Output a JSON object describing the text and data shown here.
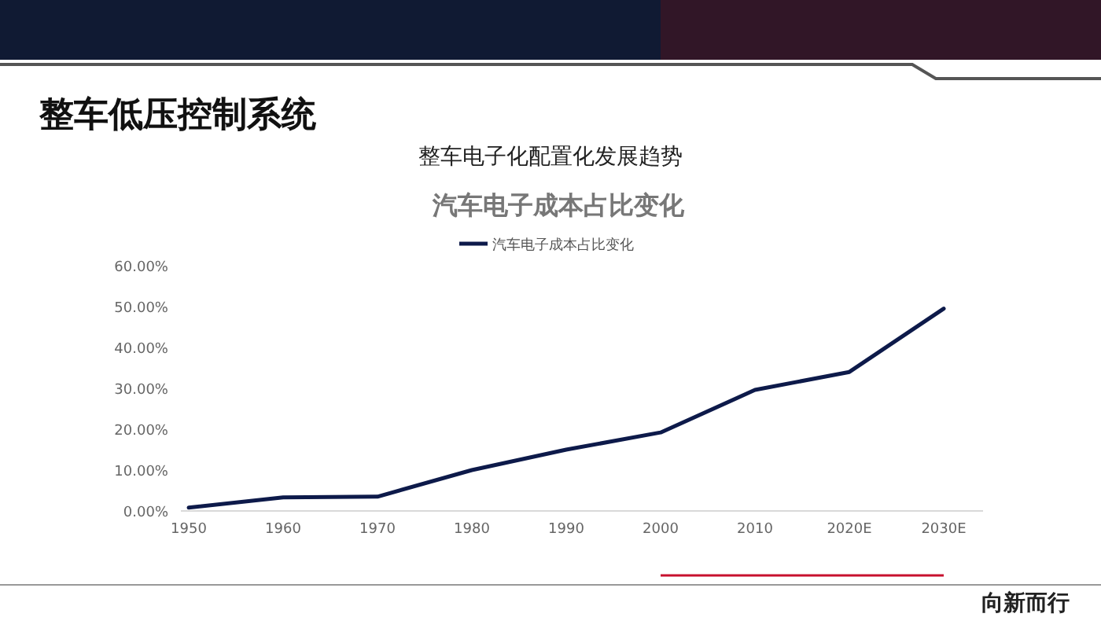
{
  "chart_data": {
    "type": "line",
    "title": "整车低压控制系统",
    "subtitle": "整车电子化配置化发展趋势",
    "annotations": [
      "汽车电子成本占比变化",
      "向新而行"
    ],
    "categories": [
      "1950",
      "1960",
      "1970",
      "1980",
      "1990",
      "2000",
      "2010",
      "2020E",
      "2030E"
    ],
    "series": [
      {
        "name": "汽车电子成本占比变化",
        "color": "#0d1a4a",
        "values": [
          0.8,
          3.3,
          3.5,
          10,
          15,
          19.2,
          29.6,
          34,
          49.5
        ]
      }
    ],
    "ylim": [
      0,
      60
    ],
    "yticks": [
      {
        "value": 0,
        "label": "0.00%"
      },
      {
        "value": 10,
        "label": "10.00%"
      },
      {
        "value": 20,
        "label": "20.00%"
      },
      {
        "value": 30,
        "label": "30.00%"
      },
      {
        "value": 40,
        "label": "40.00%"
      },
      {
        "value": 50,
        "label": "50.00%"
      },
      {
        "value": 60,
        "label": "60.00%"
      }
    ],
    "legend": "top",
    "marker": "none",
    "line_style": "solid"
  }
}
